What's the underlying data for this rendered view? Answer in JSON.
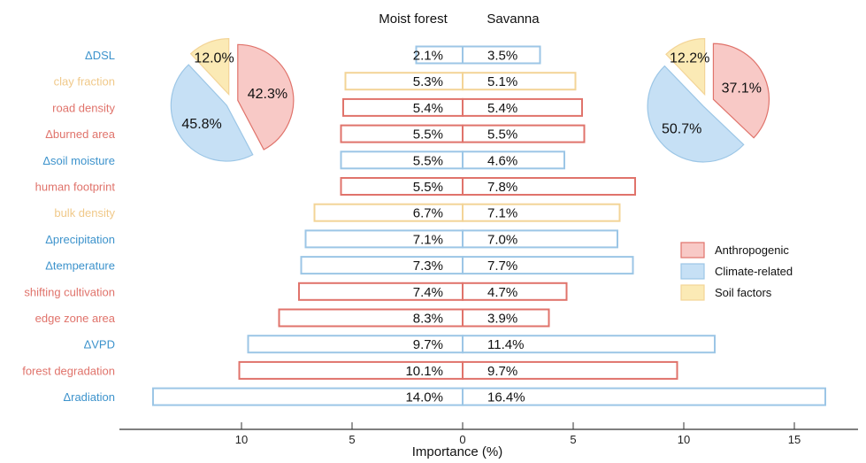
{
  "chart_data": {
    "type": "bar",
    "orientation": "horizontal-diverging",
    "title": "",
    "headers": {
      "left": "Moist forest",
      "right": "Savanna"
    },
    "xlabel": "Importance (%)",
    "xlim_left": [
      0,
      14.5
    ],
    "xlim_right": [
      0,
      18
    ],
    "ticks_left": [
      10,
      5,
      0
    ],
    "ticks_right": [
      5,
      10,
      15
    ],
    "grid": false,
    "categories": [
      {
        "label": "ΔDSL",
        "group": "climate"
      },
      {
        "label": "clay fraction",
        "group": "soil"
      },
      {
        "label": "road density",
        "group": "anthro"
      },
      {
        "label": "Δburned area",
        "group": "anthro"
      },
      {
        "label": "Δsoil moisture",
        "group": "climate"
      },
      {
        "label": "human footprint",
        "group": "anthro"
      },
      {
        "label": "bulk density",
        "group": "soil"
      },
      {
        "label": "Δprecipitation",
        "group": "climate"
      },
      {
        "label": "Δtemperature",
        "group": "climate"
      },
      {
        "label": "shifting cultivation",
        "group": "anthro"
      },
      {
        "label": "edge zone area",
        "group": "anthro"
      },
      {
        "label": "ΔVPD",
        "group": "climate"
      },
      {
        "label": "forest degradation",
        "group": "anthro"
      },
      {
        "label": "Δradiation",
        "group": "climate"
      }
    ],
    "series": [
      {
        "name": "Moist forest",
        "values": [
          2.1,
          5.3,
          5.4,
          5.5,
          5.5,
          5.5,
          6.7,
          7.1,
          7.3,
          7.4,
          8.3,
          9.7,
          10.1,
          14.0
        ]
      },
      {
        "name": "Savanna",
        "values": [
          3.5,
          5.1,
          5.4,
          5.5,
          4.6,
          7.8,
          7.1,
          7.0,
          7.7,
          4.7,
          3.9,
          11.4,
          9.7,
          16.4
        ]
      }
    ],
    "value_labels": {
      "Moist forest": [
        "2.1%",
        "5.3%",
        "5.4%",
        "5.5%",
        "5.5%",
        "5.5%",
        "6.7%",
        "7.1%",
        "7.3%",
        "7.4%",
        "8.3%",
        "9.7%",
        "10.1%",
        "14.0%"
      ],
      "Savanna": [
        "3.5%",
        "5.1%",
        "5.4%",
        "5.5%",
        "4.6%",
        "7.8%",
        "7.1%",
        "7.0%",
        "7.7%",
        "4.7%",
        "3.9%",
        "11.4%",
        "9.7%",
        "16.4%"
      ]
    },
    "groups": {
      "anthro": {
        "name": "Anthropogenic",
        "stroke": "#e0736b",
        "fill": "#f8c9c6",
        "text": "#e0736b"
      },
      "climate": {
        "name": "Climate-related",
        "stroke": "#9cc6e6",
        "fill": "#c6e0f5",
        "text": "#3d93cc"
      },
      "soil": {
        "name": "Soil factors",
        "stroke": "#f3d497",
        "fill": "#fbeab5",
        "text": "#f0c98a"
      }
    },
    "legend": {
      "position": "right",
      "entries": [
        "Anthropogenic",
        "Climate-related",
        "Soil factors"
      ]
    },
    "pies": [
      {
        "name": "Moist forest",
        "position": "top-left",
        "slices": [
          {
            "group": "anthro",
            "value": 42.3,
            "label": "42.3%"
          },
          {
            "group": "climate",
            "value": 45.8,
            "label": "45.8%"
          },
          {
            "group": "soil",
            "value": 12.0,
            "label": "12.0%"
          }
        ]
      },
      {
        "name": "Savanna",
        "position": "top-right",
        "slices": [
          {
            "group": "anthro",
            "value": 37.1,
            "label": "37.1%"
          },
          {
            "group": "climate",
            "value": 50.7,
            "label": "50.7%"
          },
          {
            "group": "soil",
            "value": 12.2,
            "label": "12.2%"
          }
        ]
      }
    ]
  }
}
